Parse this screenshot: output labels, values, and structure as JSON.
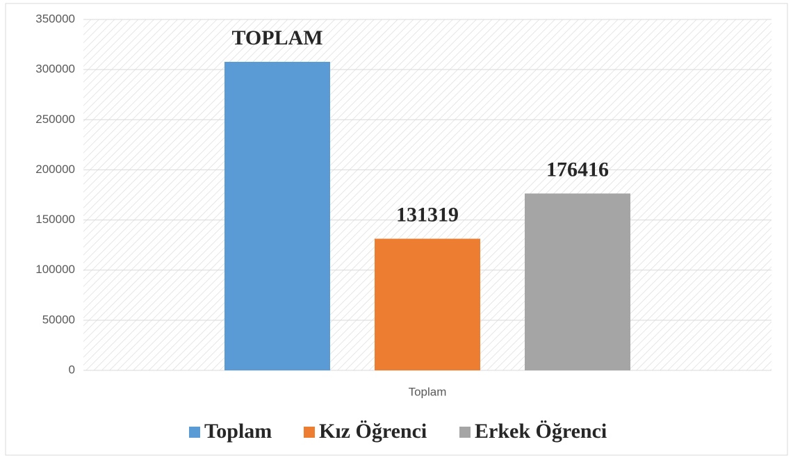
{
  "chart_data": {
    "type": "bar",
    "categories": [
      "Toplam"
    ],
    "series": [
      {
        "name": "Toplam",
        "color": "#5b9bd5",
        "values": [
          307735
        ],
        "value_labels": [
          "TOPLAM"
        ]
      },
      {
        "name": "Kız Öğrenci",
        "color": "#ed7d31",
        "values": [
          131319
        ]
      },
      {
        "name": "Erkek Öğrenci",
        "color": "#a5a5a5",
        "values": [
          176416
        ]
      }
    ],
    "ylim": [
      0,
      350000
    ],
    "yticks": [
      0,
      50000,
      100000,
      150000,
      200000,
      250000,
      300000,
      350000
    ],
    "grid": true,
    "legend": "bottom"
  }
}
